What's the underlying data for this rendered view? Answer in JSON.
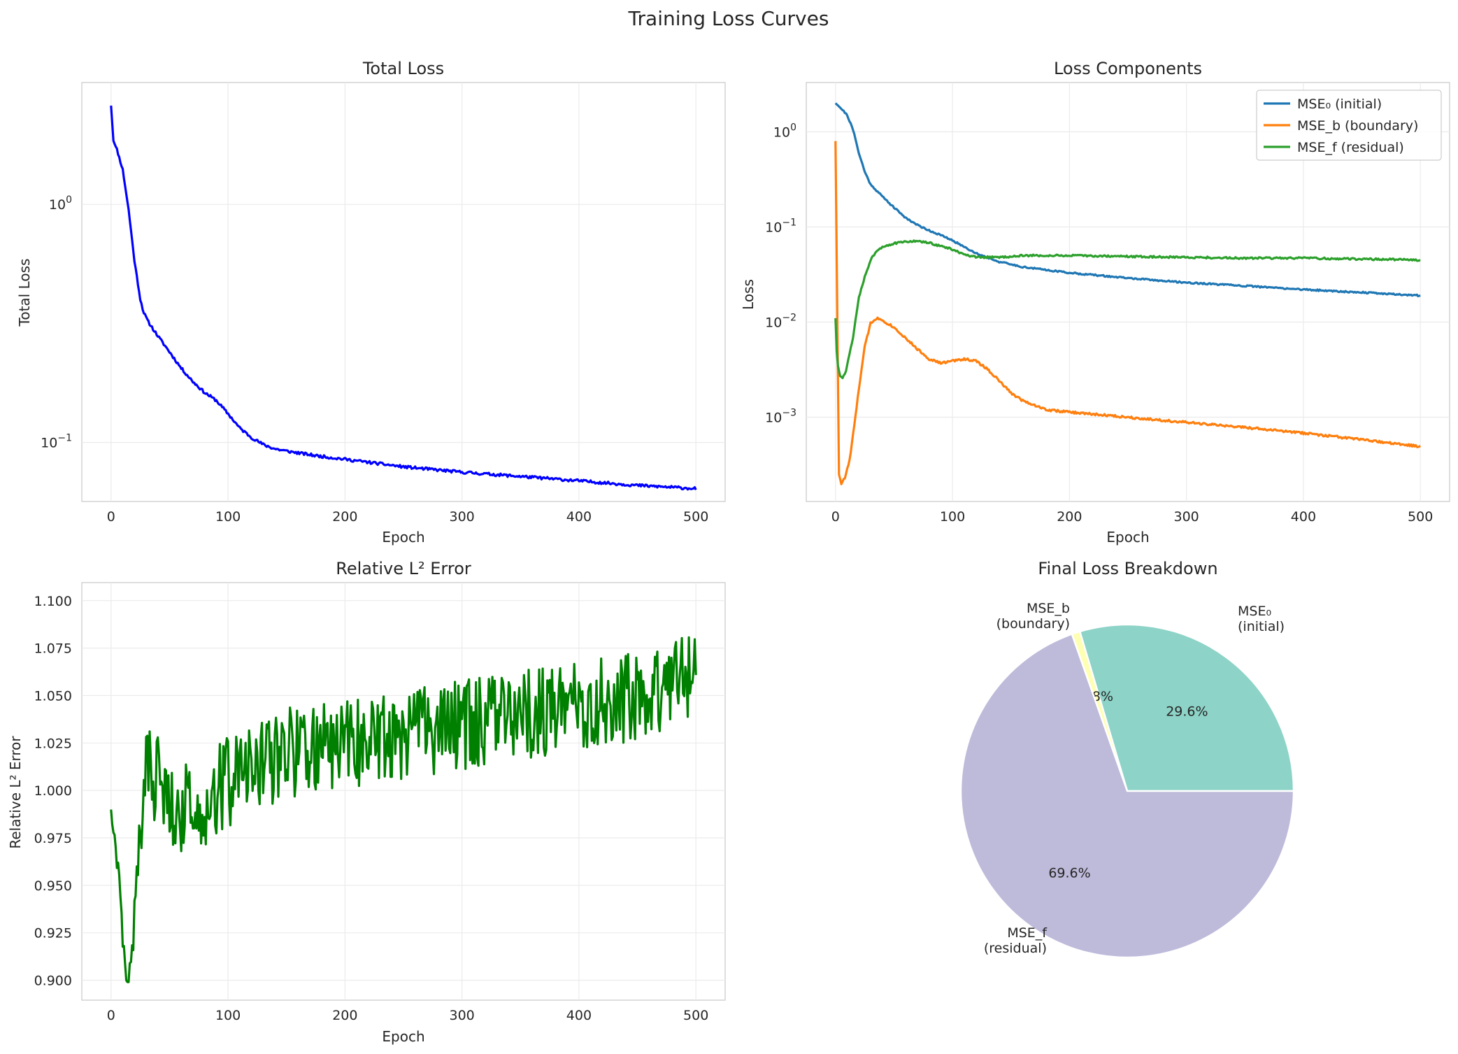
{
  "suptitle": "Training Loss Curves",
  "colors": {
    "total": "#0000ff",
    "mse0": "#1f77b4",
    "mseb": "#ff7f0e",
    "msef": "#2ca02c",
    "l2": "#008000",
    "pie": [
      "#8dd3c7",
      "#ffffb3",
      "#bebada"
    ]
  },
  "chart_data": [
    {
      "id": "total-loss",
      "type": "line",
      "title": "Total Loss",
      "xlabel": "Epoch",
      "ylabel": "Total Loss",
      "yscale": "log",
      "xlim": [
        -25,
        525
      ],
      "ylim": [
        0.0565,
        3.25
      ],
      "xticks": [
        0,
        100,
        200,
        300,
        400,
        500
      ],
      "yticks": [
        {
          "value": 1,
          "base": "10",
          "exp": "0"
        },
        {
          "value": 0.1,
          "base": "10",
          "exp": "−1"
        }
      ],
      "grid": true,
      "series": [
        {
          "name": "Total Loss",
          "x": [
            0,
            2,
            5,
            10,
            15,
            20,
            25,
            28,
            32,
            40,
            50,
            60,
            70,
            80,
            90,
            100,
            110,
            120,
            130,
            140,
            150,
            175,
            200,
            250,
            300,
            350,
            400,
            450,
            500
          ],
          "y": [
            2.6,
            1.85,
            1.7,
            1.4,
            0.95,
            0.58,
            0.4,
            0.35,
            0.32,
            0.28,
            0.24,
            0.205,
            0.18,
            0.162,
            0.15,
            0.132,
            0.115,
            0.105,
            0.098,
            0.094,
            0.092,
            0.088,
            0.085,
            0.079,
            0.075,
            0.072,
            0.069,
            0.066,
            0.064
          ],
          "noise": 0.006,
          "seed": 11
        }
      ]
    },
    {
      "id": "loss-components",
      "type": "line",
      "title": "Loss Components",
      "xlabel": "Epoch",
      "ylabel": "Loss",
      "yscale": "log",
      "xlim": [
        -25,
        525
      ],
      "ylim": [
        0.00013,
        3.3
      ],
      "xticks": [
        0,
        100,
        200,
        300,
        400,
        500
      ],
      "yticks": [
        {
          "value": 1,
          "base": "10",
          "exp": "0"
        },
        {
          "value": 0.1,
          "base": "10",
          "exp": "−1"
        },
        {
          "value": 0.01,
          "base": "10",
          "exp": "−2"
        },
        {
          "value": 0.001,
          "base": "10",
          "exp": "−3"
        }
      ],
      "grid": true,
      "legend": "top-right",
      "series": [
        {
          "name": "MSE₀ (initial)",
          "color_key": "mse0",
          "x": [
            0,
            5,
            10,
            15,
            20,
            25,
            30,
            40,
            50,
            60,
            70,
            80,
            90,
            100,
            110,
            120,
            140,
            160,
            200,
            250,
            300,
            350,
            400,
            450,
            500
          ],
          "y": [
            2.0,
            1.75,
            1.5,
            1.05,
            0.6,
            0.38,
            0.28,
            0.21,
            0.16,
            0.125,
            0.105,
            0.092,
            0.082,
            0.072,
            0.062,
            0.053,
            0.043,
            0.038,
            0.033,
            0.029,
            0.026,
            0.024,
            0.022,
            0.0205,
            0.019
          ],
          "noise": 0.008,
          "seed": 21
        },
        {
          "name": "MSE_b (boundary)",
          "color_key": "mseb",
          "x": [
            0,
            1,
            2,
            3,
            5,
            8,
            12,
            16,
            20,
            25,
            30,
            35,
            40,
            50,
            60,
            70,
            80,
            90,
            100,
            110,
            120,
            130,
            140,
            150,
            160,
            180,
            200,
            250,
            300,
            350,
            400,
            450,
            500
          ],
          "y": [
            0.8,
            0.05,
            0.003,
            0.00025,
            0.0002,
            0.00023,
            0.00035,
            0.0008,
            0.002,
            0.0055,
            0.0098,
            0.011,
            0.0105,
            0.0088,
            0.0068,
            0.0052,
            0.0041,
            0.0037,
            0.0039,
            0.0041,
            0.0039,
            0.0032,
            0.0024,
            0.0018,
            0.0015,
            0.0012,
            0.00113,
            0.001,
            0.00088,
            0.00078,
            0.00068,
            0.00058,
            0.00049
          ],
          "noise": 0.012,
          "seed": 33
        },
        {
          "name": "MSE_f (residual)",
          "color_key": "msef",
          "x": [
            0,
            1,
            2,
            4,
            6,
            8,
            10,
            15,
            20,
            25,
            30,
            35,
            40,
            50,
            60,
            70,
            80,
            90,
            100,
            110,
            120,
            140,
            160,
            200,
            250,
            300,
            350,
            400,
            450,
            500
          ],
          "y": [
            0.011,
            0.005,
            0.0035,
            0.0027,
            0.0026,
            0.0028,
            0.0035,
            0.007,
            0.018,
            0.03,
            0.045,
            0.056,
            0.062,
            0.067,
            0.07,
            0.071,
            0.068,
            0.063,
            0.058,
            0.051,
            0.048,
            0.048,
            0.05,
            0.05,
            0.049,
            0.048,
            0.047,
            0.047,
            0.046,
            0.045
          ],
          "noise": 0.01,
          "seed": 44
        }
      ]
    },
    {
      "id": "relative-l2-error",
      "type": "line",
      "title": "Relative L² Error",
      "xlabel": "Epoch",
      "ylabel": "Relative L² Error",
      "yscale": "linear",
      "xlim": [
        -25,
        525
      ],
      "ylim": [
        0.8895,
        1.1095
      ],
      "xticks": [
        0,
        100,
        200,
        300,
        400,
        500
      ],
      "yticks": [
        "0.900",
        "0.925",
        "0.950",
        "0.975",
        "1.000",
        "1.025",
        "1.050",
        "1.075",
        "1.100"
      ],
      "grid": true,
      "series": [
        {
          "name": "Relative L² Error",
          "x": [
            0,
            2,
            4,
            6,
            8,
            10,
            12,
            14,
            16,
            18,
            20,
            22,
            25,
            28,
            30,
            40,
            60,
            80,
            100,
            150,
            200,
            250,
            300,
            350,
            400,
            450,
            500
          ],
          "y": [
            0.994,
            0.972,
            0.972,
            0.955,
            0.944,
            0.915,
            0.912,
            0.9,
            0.91,
            0.92,
            0.922,
            0.955,
            0.98,
            1.0,
            1.012,
            1.005,
            0.99,
            0.995,
            1.005,
            1.02,
            1.025,
            1.03,
            1.035,
            1.04,
            1.045,
            1.05,
            1.06
          ],
          "noise_abs": 0.024,
          "seed": 57
        }
      ]
    },
    {
      "id": "final-loss-breakdown",
      "type": "pie",
      "title": "Final Loss Breakdown",
      "slices": [
        {
          "label_lines": [
            "MSE₀",
            "(initial)"
          ],
          "value": 29.6,
          "pct": "29.6%"
        },
        {
          "label_lines": [
            "MSE_b",
            "(boundary)"
          ],
          "value": 0.8,
          "pct": "0.8%"
        },
        {
          "label_lines": [
            "MSE_f",
            "(residual)"
          ],
          "value": 69.6,
          "pct": "69.6%"
        }
      ]
    }
  ]
}
